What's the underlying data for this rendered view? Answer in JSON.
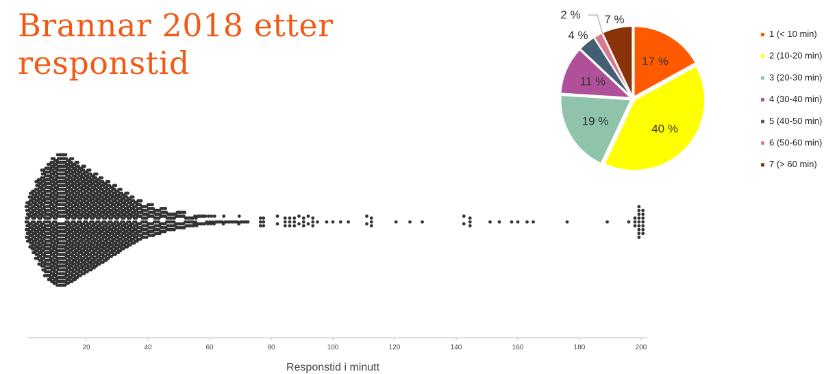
{
  "title": {
    "line1": "Brannar 2018 etter",
    "line2": "responstid"
  },
  "chart_data": [
    {
      "type": "scatter",
      "subtype": "beeswarm",
      "xlabel": "Responstid i minutt",
      "ylabel": "",
      "xlim": [
        0,
        202
      ],
      "x_ticks": [
        20,
        40,
        60,
        80,
        100,
        120,
        140,
        160,
        180,
        200
      ],
      "grid": false,
      "color": "#333333",
      "density_bins": [
        {
          "x": 1,
          "count": 22
        },
        {
          "x": 2,
          "count": 28
        },
        {
          "x": 3,
          "count": 34
        },
        {
          "x": 4,
          "count": 40
        },
        {
          "x": 5,
          "count": 46
        },
        {
          "x": 6,
          "count": 52
        },
        {
          "x": 7,
          "count": 58
        },
        {
          "x": 8,
          "count": 62
        },
        {
          "x": 9,
          "count": 64
        },
        {
          "x": 10,
          "count": 66
        },
        {
          "x": 11,
          "count": 68
        },
        {
          "x": 12,
          "count": 68
        },
        {
          "x": 13,
          "count": 68
        },
        {
          "x": 14,
          "count": 66
        },
        {
          "x": 15,
          "count": 64
        },
        {
          "x": 16,
          "count": 62
        },
        {
          "x": 17,
          "count": 60
        },
        {
          "x": 18,
          "count": 58
        },
        {
          "x": 19,
          "count": 56
        },
        {
          "x": 20,
          "count": 54
        },
        {
          "x": 21,
          "count": 52
        },
        {
          "x": 22,
          "count": 50
        },
        {
          "x": 23,
          "count": 48
        },
        {
          "x": 24,
          "count": 46
        },
        {
          "x": 25,
          "count": 44
        },
        {
          "x": 26,
          "count": 42
        },
        {
          "x": 27,
          "count": 40
        },
        {
          "x": 28,
          "count": 38
        },
        {
          "x": 29,
          "count": 36
        },
        {
          "x": 30,
          "count": 34
        },
        {
          "x": 31,
          "count": 32
        },
        {
          "x": 32,
          "count": 30
        },
        {
          "x": 33,
          "count": 28
        },
        {
          "x": 34,
          "count": 26
        },
        {
          "x": 35,
          "count": 24
        },
        {
          "x": 36,
          "count": 22
        },
        {
          "x": 37,
          "count": 20
        },
        {
          "x": 38,
          "count": 19
        },
        {
          "x": 39,
          "count": 18
        },
        {
          "x": 40,
          "count": 17
        },
        {
          "x": 41,
          "count": 16
        },
        {
          "x": 42,
          "count": 15
        },
        {
          "x": 43,
          "count": 14
        },
        {
          "x": 44,
          "count": 13
        },
        {
          "x": 45,
          "count": 12
        },
        {
          "x": 46,
          "count": 11
        },
        {
          "x": 47,
          "count": 10
        },
        {
          "x": 48,
          "count": 10
        },
        {
          "x": 49,
          "count": 9
        },
        {
          "x": 50,
          "count": 8
        },
        {
          "x": 51,
          "count": 8
        },
        {
          "x": 52,
          "count": 7
        },
        {
          "x": 53,
          "count": 6
        },
        {
          "x": 54,
          "count": 6
        },
        {
          "x": 55,
          "count": 5
        },
        {
          "x": 56,
          "count": 5
        },
        {
          "x": 57,
          "count": 4
        },
        {
          "x": 58,
          "count": 4
        },
        {
          "x": 59,
          "count": 3
        },
        {
          "x": 60,
          "count": 3
        },
        {
          "x": 61,
          "count": 3
        },
        {
          "x": 62,
          "count": 3
        },
        {
          "x": 63,
          "count": 2
        },
        {
          "x": 64,
          "count": 2
        },
        {
          "x": 65,
          "count": 3
        },
        {
          "x": 66,
          "count": 2
        },
        {
          "x": 67,
          "count": 2
        },
        {
          "x": 68,
          "count": 2
        },
        {
          "x": 69,
          "count": 2
        },
        {
          "x": 70,
          "count": 3
        },
        {
          "x": 71,
          "count": 2
        },
        {
          "x": 72,
          "count": 2
        },
        {
          "x": 73,
          "count": 1
        }
      ],
      "points": [
        {
          "x": 76.5,
          "n": 3
        },
        {
          "x": 77.5,
          "n": 3
        },
        {
          "x": 82,
          "n": 2
        },
        {
          "x": 84.5,
          "n": 3
        },
        {
          "x": 86,
          "n": 3
        },
        {
          "x": 87.5,
          "n": 3
        },
        {
          "x": 89,
          "n": 2
        },
        {
          "x": 90.5,
          "n": 3
        },
        {
          "x": 92,
          "n": 2
        },
        {
          "x": 93.5,
          "n": 3
        },
        {
          "x": 95,
          "n": 1
        },
        {
          "x": 98,
          "n": 1
        },
        {
          "x": 100,
          "n": 1
        },
        {
          "x": 102.5,
          "n": 1
        },
        {
          "x": 105,
          "n": 1
        },
        {
          "x": 111,
          "n": 2
        },
        {
          "x": 112.5,
          "n": 3
        },
        {
          "x": 120.5,
          "n": 1
        },
        {
          "x": 125,
          "n": 1
        },
        {
          "x": 129,
          "n": 1
        },
        {
          "x": 142.5,
          "n": 2
        },
        {
          "x": 144.5,
          "n": 3
        },
        {
          "x": 151,
          "n": 1
        },
        {
          "x": 154,
          "n": 1
        },
        {
          "x": 158,
          "n": 1
        },
        {
          "x": 160,
          "n": 1
        },
        {
          "x": 163,
          "n": 1
        },
        {
          "x": 165,
          "n": 1
        },
        {
          "x": 176,
          "n": 1
        },
        {
          "x": 189,
          "n": 1
        },
        {
          "x": 196,
          "n": 1
        },
        {
          "x": 198,
          "n": 3
        },
        {
          "x": 199.3,
          "n": 9
        },
        {
          "x": 200.6,
          "n": 7
        }
      ]
    },
    {
      "type": "pie",
      "labels": [
        "1 (< 10 min)",
        "2 (10-20 min)",
        "3 (20-30 min)",
        "4 (30-40 min)",
        "5 (40-50 min)",
        "6 (50-60 min)",
        "7 (> 60 min)"
      ],
      "values": [
        17,
        40,
        19,
        11,
        4,
        2,
        7
      ],
      "value_labels": [
        "17 %",
        "40 %",
        "19 %",
        "11 %",
        "4 %",
        "2 %",
        "7 %"
      ],
      "colors": [
        "#ff5a00",
        "#ffff00",
        "#8fc3aa",
        "#b0509a",
        "#445e75",
        "#d77a8e",
        "#8b3308"
      ],
      "legend_position": "right",
      "start_angle_deg": 0,
      "direction": "clockwise"
    }
  ]
}
